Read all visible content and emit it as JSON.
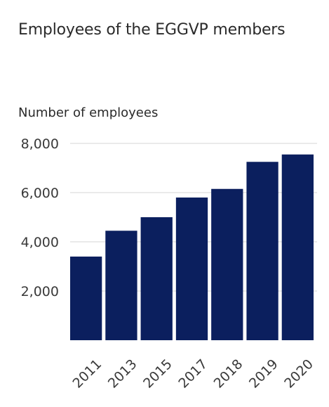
{
  "chart_data": {
    "type": "bar",
    "title": "Employees of the EGGVP members",
    "ylabel": "Number of employees",
    "xlabel": "",
    "categories": [
      "2011",
      "2013",
      "2015",
      "2017",
      "2018",
      "2019",
      "2020"
    ],
    "values": [
      3400,
      4450,
      5000,
      5800,
      6150,
      7250,
      7550
    ],
    "ylim": [
      0,
      8000
    ],
    "yticks": [
      2000,
      4000,
      6000,
      8000
    ],
    "ytick_labels": [
      "2,000",
      "4,000",
      "6,000",
      "8,000"
    ],
    "grid": true,
    "legend": "none",
    "bar_color": "#0b1f5e",
    "grid_color": "#d4d4d4"
  }
}
